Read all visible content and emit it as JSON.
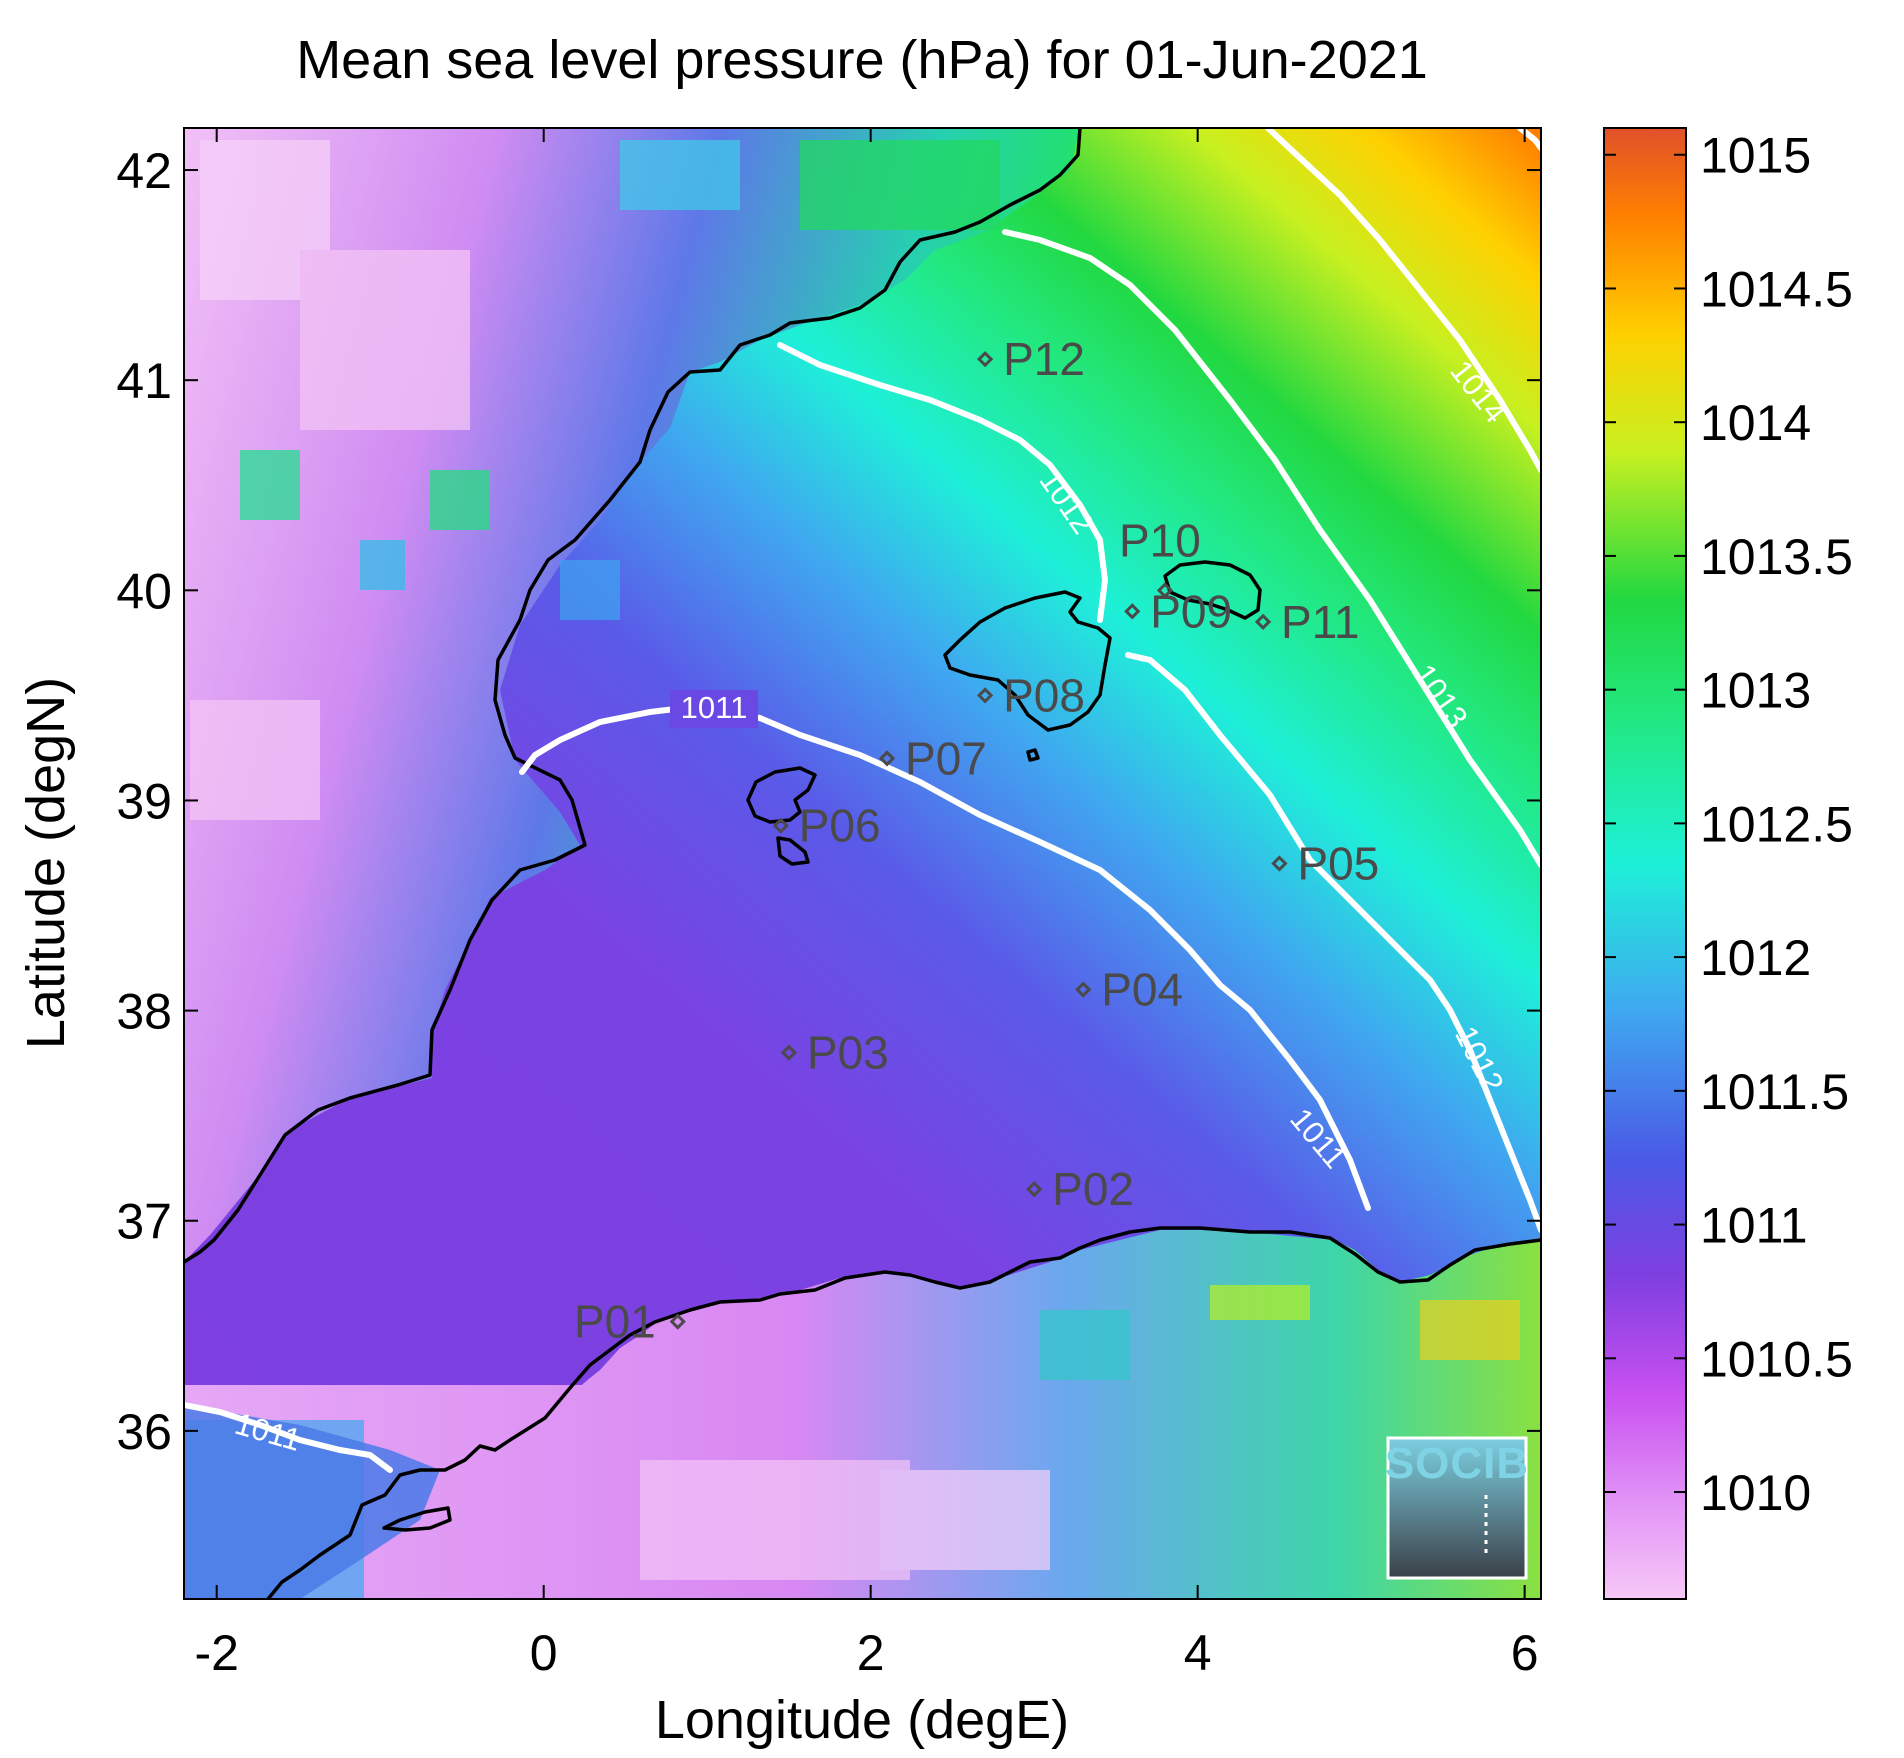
{
  "chart_data": {
    "type": "heatmap",
    "title": "Mean sea level pressure (hPa) for 01-Jun-2021",
    "xlabel": "Longitude (degE)",
    "ylabel": "Latitude (degN)",
    "xlim": [
      -2.2,
      6.1
    ],
    "ylim": [
      35.2,
      42.2
    ],
    "xticks": [
      -2,
      0,
      2,
      4,
      6
    ],
    "yticks": [
      36,
      37,
      38,
      39,
      40,
      41,
      42
    ],
    "colorbar": {
      "range": [
        1009.6,
        1015.1
      ],
      "ticks": [
        "1010",
        "1010.5",
        "1011",
        "1011.5",
        "1012",
        "1012.5",
        "1013",
        "1013.5",
        "1014",
        "1014.5",
        "1015"
      ],
      "colors": [
        "#f7c8f7",
        "#d860f0",
        "#7a3fe0",
        "#4a6ae8",
        "#3fb8f0",
        "#1ef0d8",
        "#22e060",
        "#c8f020",
        "#ffd000",
        "#ff8000",
        "#e24a1a"
      ]
    },
    "contour_labels": [
      "1011",
      "1011",
      "1011",
      "1012",
      "1012",
      "1013",
      "1014"
    ],
    "stations": [
      {
        "name": "P01",
        "lon": 0.82,
        "lat": 36.52
      },
      {
        "name": "P02",
        "lon": 3.0,
        "lat": 37.15
      },
      {
        "name": "P03",
        "lon": 1.5,
        "lat": 37.8
      },
      {
        "name": "P04",
        "lon": 3.3,
        "lat": 38.1
      },
      {
        "name": "P05",
        "lon": 4.5,
        "lat": 38.7
      },
      {
        "name": "P06",
        "lon": 1.45,
        "lat": 38.88
      },
      {
        "name": "P07",
        "lon": 2.1,
        "lat": 39.2
      },
      {
        "name": "P08",
        "lon": 2.7,
        "lat": 39.5
      },
      {
        "name": "P09",
        "lon": 3.6,
        "lat": 39.9
      },
      {
        "name": "P10",
        "lon": 3.8,
        "lat": 40.0
      },
      {
        "name": "P11",
        "lon": 4.4,
        "lat": 39.85
      },
      {
        "name": "P12",
        "lon": 2.7,
        "lat": 41.1
      }
    ]
  },
  "logo": {
    "text": "SOCIB"
  }
}
